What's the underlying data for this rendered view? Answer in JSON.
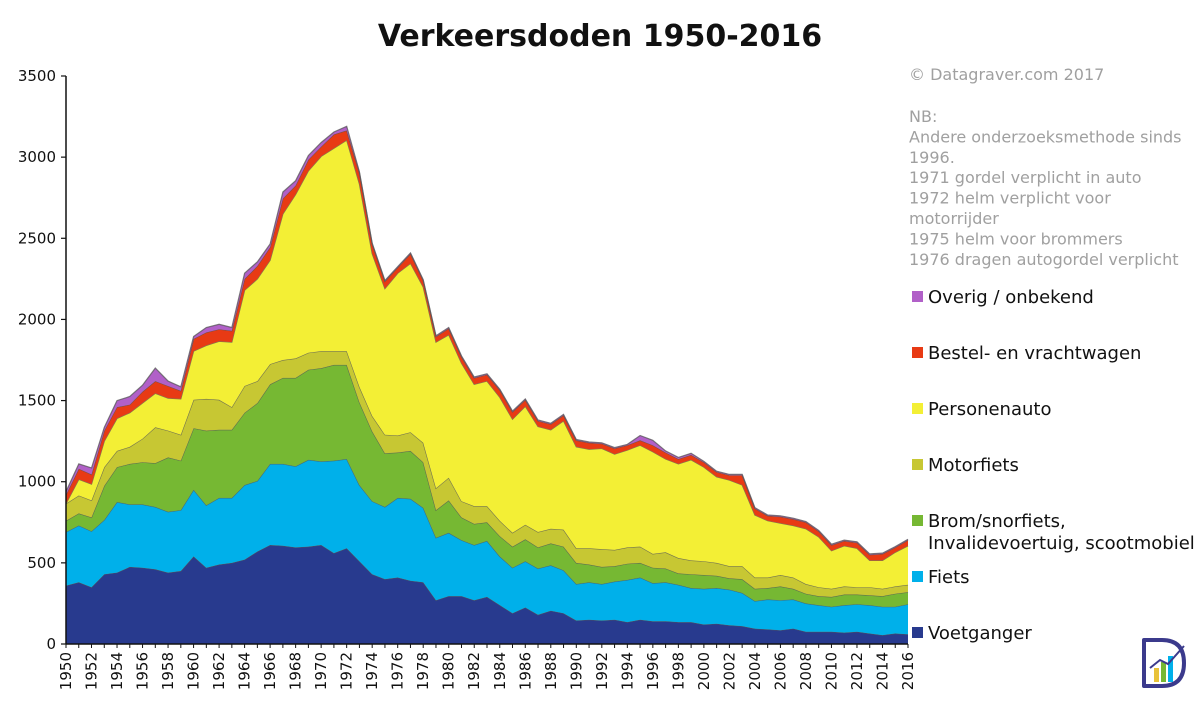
{
  "chart_data": {
    "type": "area",
    "stacked": true,
    "title": "Verkeersdoden 1950-2016",
    "xlabel": "",
    "ylabel": "",
    "ylim": [
      0,
      3500
    ],
    "yticks": [
      0,
      500,
      1000,
      1500,
      2000,
      2500,
      3000,
      3500
    ],
    "xlim": [
      1950,
      2016
    ],
    "xticks": [
      1950,
      1952,
      1954,
      1956,
      1958,
      1960,
      1962,
      1964,
      1966,
      1968,
      1970,
      1972,
      1974,
      1976,
      1978,
      1980,
      1982,
      1984,
      1986,
      1988,
      1990,
      1992,
      1994,
      1996,
      1998,
      2000,
      2002,
      2004,
      2006,
      2008,
      2010,
      2012,
      2014,
      2016
    ],
    "grid": false,
    "legend_position": "right",
    "x": [
      1950,
      1951,
      1952,
      1953,
      1954,
      1955,
      1956,
      1957,
      1958,
      1959,
      1960,
      1961,
      1962,
      1963,
      1964,
      1965,
      1966,
      1967,
      1968,
      1969,
      1970,
      1971,
      1972,
      1973,
      1974,
      1975,
      1976,
      1977,
      1978,
      1979,
      1980,
      1981,
      1982,
      1983,
      1984,
      1985,
      1986,
      1987,
      1988,
      1989,
      1990,
      1991,
      1992,
      1993,
      1994,
      1995,
      1996,
      1997,
      1998,
      1999,
      2000,
      2001,
      2002,
      2003,
      2004,
      2005,
      2006,
      2007,
      2008,
      2009,
      2010,
      2011,
      2012,
      2013,
      2014,
      2015,
      2016
    ],
    "series": [
      {
        "name": "Voetganger",
        "color": "#283a8e",
        "values": [
          360,
          380,
          350,
          430,
          440,
          475,
          470,
          460,
          440,
          450,
          540,
          470,
          490,
          500,
          520,
          570,
          610,
          605,
          595,
          600,
          610,
          560,
          590,
          510,
          430,
          400,
          410,
          390,
          380,
          270,
          295,
          295,
          270,
          290,
          240,
          190,
          225,
          180,
          205,
          190,
          145,
          150,
          145,
          150,
          135,
          150,
          140,
          140,
          135,
          135,
          120,
          125,
          115,
          110,
          95,
          90,
          85,
          95,
          75,
          75,
          75,
          70,
          75,
          65,
          55,
          65,
          60
        ]
      },
      {
        "name": "Fiets",
        "color": "#00b0ea",
        "values": [
          330,
          350,
          345,
          335,
          435,
          385,
          390,
          385,
          375,
          375,
          410,
          385,
          410,
          400,
          460,
          435,
          500,
          505,
          500,
          535,
          515,
          570,
          550,
          470,
          450,
          445,
          490,
          505,
          460,
          385,
          390,
          345,
          340,
          345,
          300,
          280,
          285,
          285,
          280,
          265,
          225,
          230,
          225,
          235,
          260,
          260,
          235,
          240,
          230,
          210,
          220,
          220,
          220,
          205,
          170,
          185,
          185,
          180,
          175,
          165,
          155,
          170,
          170,
          175,
          175,
          165,
          185
        ]
      },
      {
        "name": "Brom/snorfiets, Invalidevoertuig, scootmobiel",
        "color": "#76b833",
        "values": [
          70,
          75,
          85,
          210,
          215,
          250,
          260,
          270,
          335,
          305,
          380,
          460,
          420,
          420,
          445,
          480,
          490,
          530,
          545,
          555,
          575,
          590,
          580,
          510,
          430,
          330,
          280,
          295,
          280,
          170,
          200,
          140,
          130,
          115,
          125,
          130,
          135,
          130,
          135,
          145,
          130,
          110,
          105,
          95,
          100,
          90,
          95,
          85,
          70,
          85,
          85,
          75,
          70,
          85,
          75,
          70,
          85,
          65,
          60,
          55,
          60,
          65,
          60,
          60,
          65,
          80,
          75
        ]
      },
      {
        "name": "Motorfiets",
        "color": "#c7c733",
        "values": [
          105,
          110,
          105,
          115,
          100,
          105,
          145,
          220,
          165,
          160,
          175,
          195,
          185,
          140,
          165,
          135,
          125,
          110,
          120,
          105,
          105,
          85,
          85,
          95,
          95,
          115,
          105,
          115,
          120,
          135,
          140,
          100,
          110,
          100,
          95,
          85,
          90,
          95,
          90,
          105,
          90,
          100,
          110,
          100,
          100,
          100,
          85,
          100,
          95,
          85,
          85,
          80,
          75,
          80,
          70,
          65,
          70,
          70,
          60,
          55,
          50,
          50,
          45,
          50,
          45,
          45,
          45
        ]
      },
      {
        "name": "Personenauto",
        "color": "#f3ef35",
        "values": [
          0,
          100,
          100,
          160,
          200,
          210,
          220,
          210,
          200,
          220,
          300,
          330,
          360,
          400,
          590,
          630,
          640,
          900,
          1010,
          1120,
          1200,
          1250,
          1300,
          1250,
          1000,
          900,
          1000,
          1040,
          960,
          900,
          880,
          850,
          750,
          770,
          760,
          700,
          730,
          650,
          610,
          670,
          625,
          610,
          620,
          590,
          600,
          625,
          630,
          575,
          580,
          620,
          580,
          530,
          530,
          500,
          385,
          350,
          320,
          320,
          340,
          310,
          235,
          250,
          240,
          165,
          175,
          210,
          240
        ]
      },
      {
        "name": "Bestel- en vrachtwagen",
        "color": "#e83a14",
        "values": [
          55,
          65,
          60,
          65,
          70,
          50,
          70,
          75,
          75,
          50,
          75,
          80,
          75,
          70,
          70,
          80,
          80,
          95,
          55,
          70,
          60,
          85,
          60,
          70,
          60,
          45,
          35,
          60,
          40,
          35,
          40,
          40,
          40,
          40,
          45,
          45,
          40,
          35,
          35,
          35,
          40,
          40,
          30,
          35,
          30,
          30,
          40,
          40,
          30,
          30,
          30,
          30,
          30,
          60,
          40,
          30,
          40,
          40,
          40,
          35,
          35,
          30,
          35,
          35,
          40,
          30,
          35
        ]
      },
      {
        "name": "Overig / onbekend",
        "color": "#b160c8",
        "values": [
          20,
          30,
          40,
          20,
          40,
          50,
          40,
          80,
          30,
          25,
          15,
          30,
          30,
          20,
          35,
          25,
          20,
          40,
          30,
          25,
          25,
          15,
          25,
          5,
          5,
          5,
          5,
          5,
          5,
          5,
          5,
          5,
          5,
          5,
          5,
          5,
          5,
          5,
          5,
          5,
          5,
          5,
          5,
          5,
          5,
          30,
          30,
          10,
          10,
          10,
          5,
          5,
          5,
          5,
          5,
          5,
          5,
          5,
          5,
          5,
          5,
          5,
          5,
          5,
          5,
          5,
          5
        ]
      }
    ]
  },
  "credit": "© Datagraver.com  2017",
  "notes": [
    "NB:",
    "Andere onderzoeksmethode sinds",
    "1996.",
    "1971 gordel verplicht in auto",
    "1972 helm verplicht voor",
    "motorrijder",
    "1975 helm voor brommers",
    "1976 dragen autogordel verplicht"
  ],
  "legend": [
    {
      "label": "Overig / onbekend",
      "color": "#b160c8"
    },
    {
      "label": "Bestel- en vrachtwagen",
      "color": "#e83a14"
    },
    {
      "label": "Personenauto",
      "color": "#f3ef35"
    },
    {
      "label": "Motorfiets",
      "color": "#c7c733"
    },
    {
      "label": "Brom/snorfiets,",
      "label2": "Invalidevoertuig, scootmobiel",
      "color": "#76b833"
    },
    {
      "label": "Fiets",
      "color": "#00b0ea"
    },
    {
      "label": "Voetganger",
      "color": "#283a8e"
    }
  ],
  "logo": {
    "icon": "datagraver-logo-icon",
    "letter": "D"
  }
}
